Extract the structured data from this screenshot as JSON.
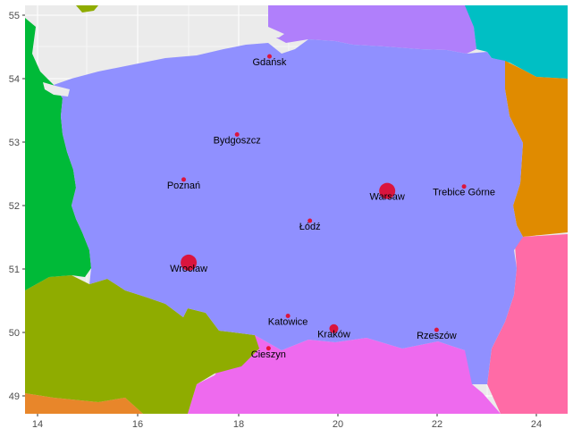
{
  "map": {
    "x_ticks": [
      "14",
      "16",
      "18",
      "20",
      "22",
      "24"
    ],
    "y_ticks": [
      "55",
      "54",
      "53",
      "52",
      "51",
      "50",
      "49"
    ],
    "colors": {
      "panel": "#ebebeb",
      "grid": "#ffffff",
      "poland": "#9090ff",
      "germany": "#00ba38",
      "czechia": "#8fac00",
      "slovakia": "#ee6aee",
      "ukraine": "#ff6ba6",
      "belarus": "#e08b00",
      "lithuania": "#00bfc4",
      "russia": "#b07ffb",
      "austria": "#e8862a",
      "city_marker": "#e8001c"
    },
    "cities": [
      {
        "name": "Gdańsk",
        "lon": 18.65,
        "lat": 54.35,
        "size": "small"
      },
      {
        "name": "Bydgoszcz",
        "lon": 18.0,
        "lat": 53.12,
        "size": "small"
      },
      {
        "name": "Poznań",
        "lon": 16.93,
        "lat": 52.41,
        "size": "small"
      },
      {
        "name": "Warsaw",
        "lon": 21.01,
        "lat": 52.23,
        "size": "large"
      },
      {
        "name": "Trebice Górne",
        "lon": 22.55,
        "lat": 52.3,
        "size": "small"
      },
      {
        "name": "Łódź",
        "lon": 19.46,
        "lat": 51.76,
        "size": "small"
      },
      {
        "name": "Wrocław",
        "lon": 17.03,
        "lat": 51.1,
        "size": "large"
      },
      {
        "name": "Katowice",
        "lon": 19.02,
        "lat": 50.26,
        "size": "small"
      },
      {
        "name": "Kraków",
        "lon": 19.94,
        "lat": 50.06,
        "size": "medium"
      },
      {
        "name": "Rzeszów",
        "lon": 22.0,
        "lat": 50.04,
        "size": "small"
      },
      {
        "name": "Cieszyn",
        "lon": 18.63,
        "lat": 49.75,
        "size": "small"
      }
    ]
  }
}
